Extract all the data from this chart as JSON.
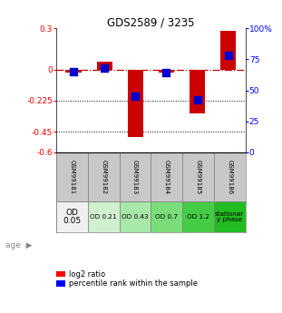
{
  "title": "GDS2589 / 3235",
  "samples": [
    "GSM99181",
    "GSM99182",
    "GSM99183",
    "GSM99184",
    "GSM99185",
    "GSM99186"
  ],
  "log2_ratio": [
    -0.02,
    0.06,
    -0.49,
    -0.02,
    -0.32,
    0.28
  ],
  "percentile_rank": [
    65,
    68,
    45,
    64,
    42,
    78
  ],
  "ylim_left": [
    -0.6,
    0.3
  ],
  "ylim_right": [
    0,
    100
  ],
  "yticks_left": [
    0.3,
    0,
    -0.225,
    -0.45,
    -0.6
  ],
  "yticks_right": [
    100,
    75,
    50,
    25,
    0
  ],
  "hlines": [
    -0.225,
    -0.45
  ],
  "bar_color": "#cc0000",
  "dot_color": "#0000cc",
  "age_labels": [
    "OD\n0.05",
    "OD 0.21",
    "OD 0.43",
    "OD 0.7",
    "OD 1.2",
    "stationar\ny phase"
  ],
  "age_bg_colors": [
    "#f0f0f0",
    "#d0f0d0",
    "#a8e8a8",
    "#7add7a",
    "#44cc44",
    "#22bb22"
  ],
  "sample_bg": "#c8c8c8",
  "bar_width": 0.5,
  "dot_size": 28,
  "legend_red": "log2 ratio",
  "legend_blue": "percentile rank within the sample"
}
